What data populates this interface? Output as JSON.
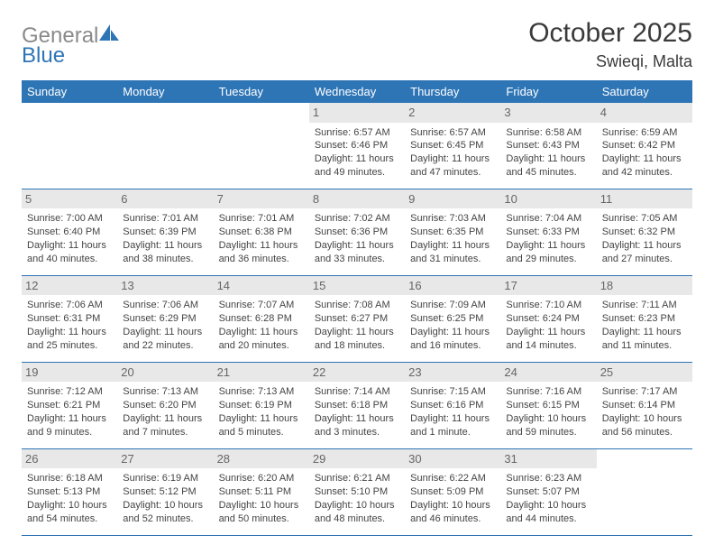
{
  "logo": {
    "text1": "General",
    "text2": "Blue"
  },
  "title": "October 2025",
  "location": "Swieqi, Malta",
  "header_bg": "#2e75b6",
  "daynum_bg": "#e8e8e8",
  "dow": [
    "Sunday",
    "Monday",
    "Tuesday",
    "Wednesday",
    "Thursday",
    "Friday",
    "Saturday"
  ],
  "weeks": [
    [
      {
        "n": "",
        "sr": "",
        "ss": "",
        "d1": "",
        "d2": ""
      },
      {
        "n": "",
        "sr": "",
        "ss": "",
        "d1": "",
        "d2": ""
      },
      {
        "n": "",
        "sr": "",
        "ss": "",
        "d1": "",
        "d2": ""
      },
      {
        "n": "1",
        "sr": "Sunrise: 6:57 AM",
        "ss": "Sunset: 6:46 PM",
        "d1": "Daylight: 11 hours",
        "d2": "and 49 minutes."
      },
      {
        "n": "2",
        "sr": "Sunrise: 6:57 AM",
        "ss": "Sunset: 6:45 PM",
        "d1": "Daylight: 11 hours",
        "d2": "and 47 minutes."
      },
      {
        "n": "3",
        "sr": "Sunrise: 6:58 AM",
        "ss": "Sunset: 6:43 PM",
        "d1": "Daylight: 11 hours",
        "d2": "and 45 minutes."
      },
      {
        "n": "4",
        "sr": "Sunrise: 6:59 AM",
        "ss": "Sunset: 6:42 PM",
        "d1": "Daylight: 11 hours",
        "d2": "and 42 minutes."
      }
    ],
    [
      {
        "n": "5",
        "sr": "Sunrise: 7:00 AM",
        "ss": "Sunset: 6:40 PM",
        "d1": "Daylight: 11 hours",
        "d2": "and 40 minutes."
      },
      {
        "n": "6",
        "sr": "Sunrise: 7:01 AM",
        "ss": "Sunset: 6:39 PM",
        "d1": "Daylight: 11 hours",
        "d2": "and 38 minutes."
      },
      {
        "n": "7",
        "sr": "Sunrise: 7:01 AM",
        "ss": "Sunset: 6:38 PM",
        "d1": "Daylight: 11 hours",
        "d2": "and 36 minutes."
      },
      {
        "n": "8",
        "sr": "Sunrise: 7:02 AM",
        "ss": "Sunset: 6:36 PM",
        "d1": "Daylight: 11 hours",
        "d2": "and 33 minutes."
      },
      {
        "n": "9",
        "sr": "Sunrise: 7:03 AM",
        "ss": "Sunset: 6:35 PM",
        "d1": "Daylight: 11 hours",
        "d2": "and 31 minutes."
      },
      {
        "n": "10",
        "sr": "Sunrise: 7:04 AM",
        "ss": "Sunset: 6:33 PM",
        "d1": "Daylight: 11 hours",
        "d2": "and 29 minutes."
      },
      {
        "n": "11",
        "sr": "Sunrise: 7:05 AM",
        "ss": "Sunset: 6:32 PM",
        "d1": "Daylight: 11 hours",
        "d2": "and 27 minutes."
      }
    ],
    [
      {
        "n": "12",
        "sr": "Sunrise: 7:06 AM",
        "ss": "Sunset: 6:31 PM",
        "d1": "Daylight: 11 hours",
        "d2": "and 25 minutes."
      },
      {
        "n": "13",
        "sr": "Sunrise: 7:06 AM",
        "ss": "Sunset: 6:29 PM",
        "d1": "Daylight: 11 hours",
        "d2": "and 22 minutes."
      },
      {
        "n": "14",
        "sr": "Sunrise: 7:07 AM",
        "ss": "Sunset: 6:28 PM",
        "d1": "Daylight: 11 hours",
        "d2": "and 20 minutes."
      },
      {
        "n": "15",
        "sr": "Sunrise: 7:08 AM",
        "ss": "Sunset: 6:27 PM",
        "d1": "Daylight: 11 hours",
        "d2": "and 18 minutes."
      },
      {
        "n": "16",
        "sr": "Sunrise: 7:09 AM",
        "ss": "Sunset: 6:25 PM",
        "d1": "Daylight: 11 hours",
        "d2": "and 16 minutes."
      },
      {
        "n": "17",
        "sr": "Sunrise: 7:10 AM",
        "ss": "Sunset: 6:24 PM",
        "d1": "Daylight: 11 hours",
        "d2": "and 14 minutes."
      },
      {
        "n": "18",
        "sr": "Sunrise: 7:11 AM",
        "ss": "Sunset: 6:23 PM",
        "d1": "Daylight: 11 hours",
        "d2": "and 11 minutes."
      }
    ],
    [
      {
        "n": "19",
        "sr": "Sunrise: 7:12 AM",
        "ss": "Sunset: 6:21 PM",
        "d1": "Daylight: 11 hours",
        "d2": "and 9 minutes."
      },
      {
        "n": "20",
        "sr": "Sunrise: 7:13 AM",
        "ss": "Sunset: 6:20 PM",
        "d1": "Daylight: 11 hours",
        "d2": "and 7 minutes."
      },
      {
        "n": "21",
        "sr": "Sunrise: 7:13 AM",
        "ss": "Sunset: 6:19 PM",
        "d1": "Daylight: 11 hours",
        "d2": "and 5 minutes."
      },
      {
        "n": "22",
        "sr": "Sunrise: 7:14 AM",
        "ss": "Sunset: 6:18 PM",
        "d1": "Daylight: 11 hours",
        "d2": "and 3 minutes."
      },
      {
        "n": "23",
        "sr": "Sunrise: 7:15 AM",
        "ss": "Sunset: 6:16 PM",
        "d1": "Daylight: 11 hours",
        "d2": "and 1 minute."
      },
      {
        "n": "24",
        "sr": "Sunrise: 7:16 AM",
        "ss": "Sunset: 6:15 PM",
        "d1": "Daylight: 10 hours",
        "d2": "and 59 minutes."
      },
      {
        "n": "25",
        "sr": "Sunrise: 7:17 AM",
        "ss": "Sunset: 6:14 PM",
        "d1": "Daylight: 10 hours",
        "d2": "and 56 minutes."
      }
    ],
    [
      {
        "n": "26",
        "sr": "Sunrise: 6:18 AM",
        "ss": "Sunset: 5:13 PM",
        "d1": "Daylight: 10 hours",
        "d2": "and 54 minutes."
      },
      {
        "n": "27",
        "sr": "Sunrise: 6:19 AM",
        "ss": "Sunset: 5:12 PM",
        "d1": "Daylight: 10 hours",
        "d2": "and 52 minutes."
      },
      {
        "n": "28",
        "sr": "Sunrise: 6:20 AM",
        "ss": "Sunset: 5:11 PM",
        "d1": "Daylight: 10 hours",
        "d2": "and 50 minutes."
      },
      {
        "n": "29",
        "sr": "Sunrise: 6:21 AM",
        "ss": "Sunset: 5:10 PM",
        "d1": "Daylight: 10 hours",
        "d2": "and 48 minutes."
      },
      {
        "n": "30",
        "sr": "Sunrise: 6:22 AM",
        "ss": "Sunset: 5:09 PM",
        "d1": "Daylight: 10 hours",
        "d2": "and 46 minutes."
      },
      {
        "n": "31",
        "sr": "Sunrise: 6:23 AM",
        "ss": "Sunset: 5:07 PM",
        "d1": "Daylight: 10 hours",
        "d2": "and 44 minutes."
      },
      {
        "n": "",
        "sr": "",
        "ss": "",
        "d1": "",
        "d2": ""
      }
    ]
  ]
}
